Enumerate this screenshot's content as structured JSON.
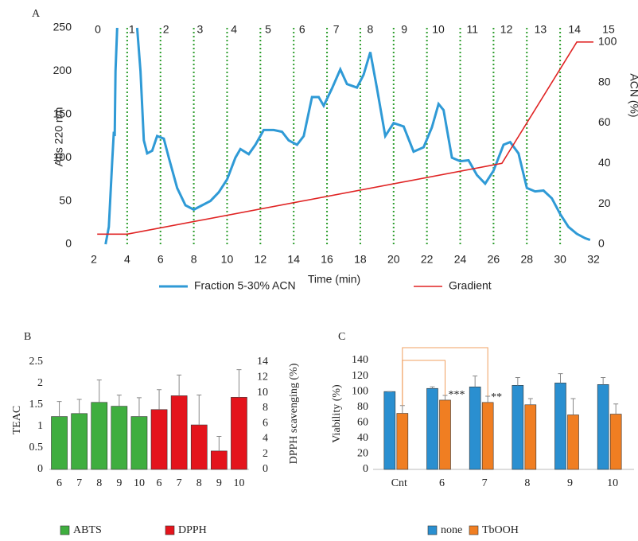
{
  "chart_data": [
    {
      "type": "line",
      "panel": "A",
      "fractions": [
        "0",
        "1",
        "2",
        "3",
        "4",
        "5",
        "6",
        "7",
        "8",
        "9",
        "10",
        "11",
        "12",
        "13",
        "14",
        "15"
      ],
      "x_label": "Time (min)",
      "y_label": "Abs 220 nm",
      "y2_label": "ACN (%)",
      "xlim": [
        2,
        32
      ],
      "xticks": [
        2,
        4,
        6,
        8,
        10,
        12,
        14,
        16,
        18,
        20,
        22,
        24,
        26,
        28,
        30,
        32
      ],
      "ylim": [
        0,
        250
      ],
      "yticks": [
        0,
        50,
        100,
        150,
        200,
        250
      ],
      "y2lim": [
        0,
        107
      ],
      "y2ticks": [
        0,
        20,
        40,
        60,
        80,
        100
      ],
      "series": [
        {
          "name": "Fraction 5-30% ACN",
          "color": "#2f9ad6",
          "x": [
            2.7,
            2.9,
            3.1,
            3.2,
            3.25,
            3.3,
            3.4,
            4.0,
            4.6,
            4.8,
            5.0,
            5.2,
            5.5,
            5.8,
            6.2,
            6.5,
            7,
            7.5,
            8,
            8.5,
            9,
            9.5,
            10,
            10.5,
            10.8,
            11.3,
            11.7,
            12.2,
            12.8,
            13.3,
            13.7,
            14.2,
            14.6,
            15.1,
            15.5,
            15.8,
            16.3,
            16.8,
            17.2,
            17.8,
            18.2,
            18.6,
            19,
            19.5,
            20,
            20.6,
            21.2,
            21.8,
            22.3,
            22.7,
            23,
            23.5,
            24,
            24.5,
            25,
            25.5,
            26,
            26.6,
            27,
            27.5,
            28,
            28.5,
            29,
            29.5,
            30,
            30.5,
            31,
            31.5,
            31.8
          ],
          "values": [
            0,
            20,
            95,
            130,
            125,
            200,
            250,
            null,
            250,
            200,
            120,
            105,
            108,
            125,
            122,
            100,
            65,
            45,
            40,
            45,
            50,
            60,
            75,
            100,
            110,
            104,
            115,
            132,
            132,
            130,
            120,
            115,
            125,
            170,
            170,
            160,
            180,
            202,
            185,
            181,
            196,
            222,
            180,
            125,
            140,
            136,
            107,
            112,
            135,
            162,
            155,
            100,
            96,
            97,
            80,
            70,
            85,
            115,
            118,
            105,
            65,
            61,
            62,
            53,
            35,
            20,
            12,
            7,
            5
          ]
        },
        {
          "name": "Gradient",
          "color": "#e02424",
          "axis": "y2",
          "x": [
            2.2,
            4,
            26.5,
            31,
            32
          ],
          "values": [
            5,
            5,
            40,
            100,
            100
          ]
        }
      ]
    },
    {
      "type": "bar",
      "panel": "B",
      "y_label": "TEAC",
      "y2_label": "DPPH scavenging (%)",
      "categories": [
        "6",
        "7",
        "8",
        "9",
        "10",
        "6",
        "7",
        "8",
        "9",
        "10"
      ],
      "ylim": [
        0,
        2.5
      ],
      "yticks": [
        0,
        0.5,
        1,
        1.5,
        2,
        2.5
      ],
      "y2lim": [
        0,
        14
      ],
      "y2ticks": [
        0,
        2,
        4,
        6,
        8,
        10,
        12,
        14
      ],
      "series": [
        {
          "name": "ABTS",
          "color": "#3fae3f",
          "values": [
            1.23,
            1.3,
            1.56,
            1.47,
            1.23,
            null,
            null,
            null,
            null,
            null
          ],
          "errors": [
            0.35,
            0.33,
            0.52,
            0.26,
            0.44,
            null,
            null,
            null,
            null,
            null
          ]
        },
        {
          "name": "DPPH",
          "color": "#e4141c",
          "axis": "y2",
          "values": [
            null,
            null,
            null,
            null,
            null,
            7.8,
            9.6,
            5.8,
            2.4,
            9.4
          ],
          "errors": [
            null,
            null,
            null,
            null,
            null,
            2.6,
            2.7,
            3.9,
            1.9,
            3.6
          ]
        }
      ]
    },
    {
      "type": "grouped-bar",
      "panel": "C",
      "y_label": "Viability (%)",
      "categories": [
        "Cnt",
        "6",
        "7",
        "8",
        "9",
        "10"
      ],
      "ylim": [
        0,
        140
      ],
      "yticks": [
        0,
        20,
        40,
        60,
        80,
        100,
        120,
        140
      ],
      "series": [
        {
          "name": "none",
          "color": "#2a8fd0",
          "values": [
            100,
            104,
            106,
            108,
            111,
            109
          ],
          "errors": [
            0,
            2,
            14,
            10,
            12,
            9
          ]
        },
        {
          "name": "TbOOH",
          "color": "#f07e22",
          "values": [
            72,
            89,
            86,
            83,
            70,
            71
          ],
          "errors": [
            10,
            6,
            8,
            8,
            21,
            13
          ]
        }
      ],
      "annotations": [
        {
          "text": "***",
          "x": "6"
        },
        {
          "text": "**",
          "x": "7"
        }
      ]
    }
  ]
}
